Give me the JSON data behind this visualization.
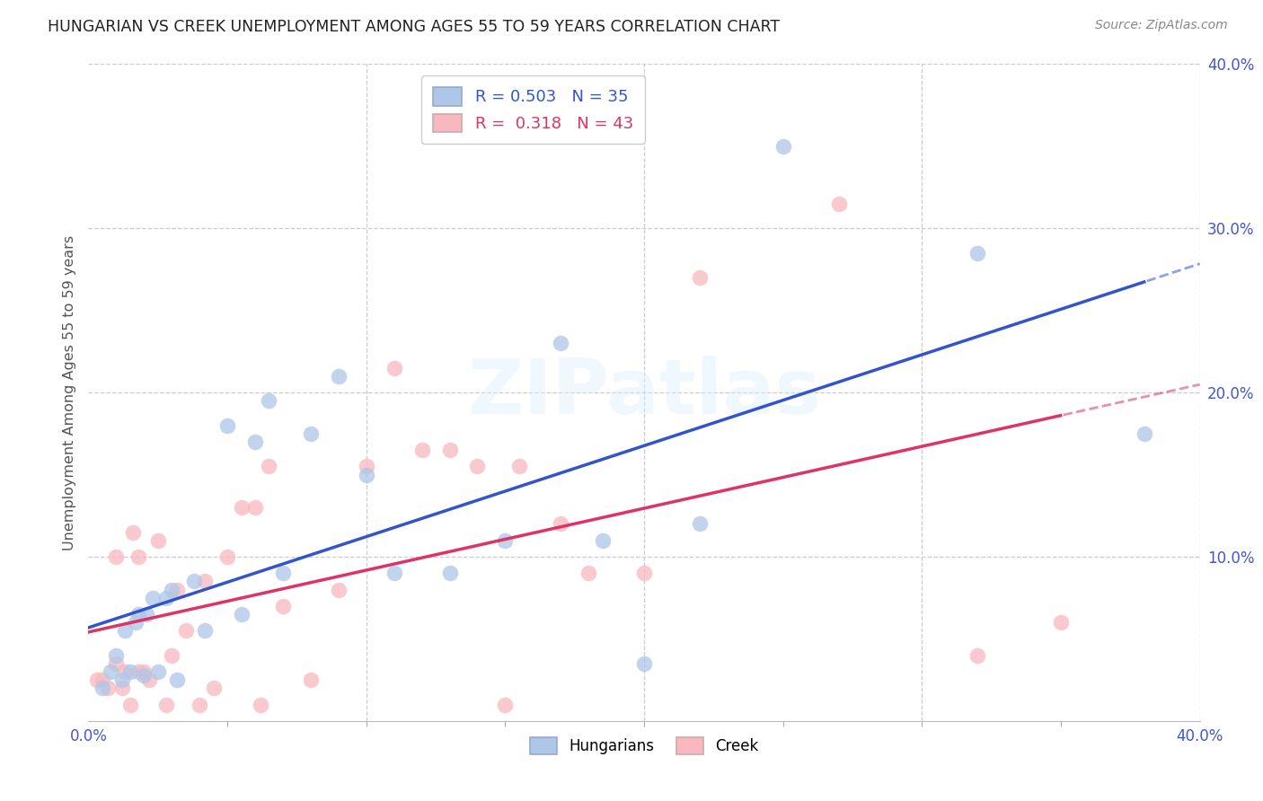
{
  "title": "HUNGARIAN VS CREEK UNEMPLOYMENT AMONG AGES 55 TO 59 YEARS CORRELATION CHART",
  "source": "Source: ZipAtlas.com",
  "ylabel": "Unemployment Among Ages 55 to 59 years",
  "xlim": [
    0,
    0.4
  ],
  "ylim": [
    0,
    0.4
  ],
  "blue_color": "#aec6e8",
  "pink_color": "#f9b8c0",
  "blue_line_color": "#3355cc",
  "pink_line_color": "#dd3366",
  "blue_R": 0.503,
  "blue_N": 35,
  "pink_R": 0.318,
  "pink_N": 43,
  "legend_label_blue": "Hungarians",
  "legend_label_pink": "Creek",
  "blue_scatter_x": [
    0.005,
    0.008,
    0.01,
    0.012,
    0.013,
    0.015,
    0.017,
    0.018,
    0.02,
    0.021,
    0.023,
    0.025,
    0.028,
    0.03,
    0.032,
    0.038,
    0.042,
    0.05,
    0.055,
    0.06,
    0.065,
    0.07,
    0.08,
    0.09,
    0.1,
    0.11,
    0.13,
    0.15,
    0.17,
    0.185,
    0.2,
    0.22,
    0.25,
    0.32,
    0.38
  ],
  "blue_scatter_y": [
    0.02,
    0.03,
    0.04,
    0.025,
    0.055,
    0.03,
    0.06,
    0.065,
    0.028,
    0.065,
    0.075,
    0.03,
    0.075,
    0.08,
    0.025,
    0.085,
    0.055,
    0.18,
    0.065,
    0.17,
    0.195,
    0.09,
    0.175,
    0.21,
    0.15,
    0.09,
    0.09,
    0.11,
    0.23,
    0.11,
    0.035,
    0.12,
    0.35,
    0.285,
    0.175
  ],
  "pink_scatter_x": [
    0.003,
    0.005,
    0.007,
    0.01,
    0.01,
    0.012,
    0.013,
    0.015,
    0.016,
    0.018,
    0.018,
    0.02,
    0.022,
    0.025,
    0.028,
    0.03,
    0.032,
    0.035,
    0.04,
    0.042,
    0.045,
    0.05,
    0.055,
    0.06,
    0.062,
    0.065,
    0.07,
    0.08,
    0.09,
    0.1,
    0.11,
    0.12,
    0.13,
    0.14,
    0.15,
    0.155,
    0.17,
    0.18,
    0.2,
    0.22,
    0.27,
    0.32,
    0.35
  ],
  "pink_scatter_y": [
    0.025,
    0.025,
    0.02,
    0.1,
    0.035,
    0.02,
    0.03,
    0.01,
    0.115,
    0.03,
    0.1,
    0.03,
    0.025,
    0.11,
    0.01,
    0.04,
    0.08,
    0.055,
    0.01,
    0.085,
    0.02,
    0.1,
    0.13,
    0.13,
    0.01,
    0.155,
    0.07,
    0.025,
    0.08,
    0.155,
    0.215,
    0.165,
    0.165,
    0.155,
    0.01,
    0.155,
    0.12,
    0.09,
    0.09,
    0.27,
    0.315,
    0.04,
    0.06
  ],
  "blue_line_x_solid_end": 0.38,
  "pink_line_x_solid_end": 0.35,
  "minor_xticks": [
    0.05,
    0.1,
    0.15,
    0.2,
    0.25,
    0.3,
    0.35
  ],
  "grid_values": [
    0.1,
    0.2,
    0.3,
    0.4
  ]
}
